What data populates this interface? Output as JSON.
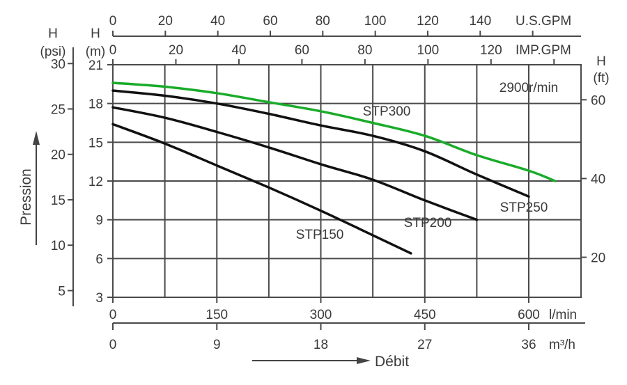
{
  "chart_data": {
    "type": "line",
    "title": "",
    "speed_label": "2900r/min",
    "xlabel": "Débit",
    "ylabel": "Pression",
    "x_unit": "l/min",
    "y_unit": "m",
    "xlim": [
      0,
      675
    ],
    "ylim": [
      3,
      21
    ],
    "grid": true,
    "legend_position": "inline labels",
    "axes": {
      "bottom_primary": {
        "unit": "l/min",
        "ticks": [
          0,
          150,
          300,
          450,
          600
        ]
      },
      "bottom_secondary": {
        "unit": "m³/h",
        "ticks": [
          0,
          9,
          18,
          27,
          36
        ]
      },
      "top_primary": {
        "unit": "U.S.GPM",
        "ticks": [
          0,
          20,
          40,
          60,
          80,
          100,
          120,
          140
        ]
      },
      "top_secondary": {
        "unit": "IMP.GPM",
        "ticks": [
          0,
          20,
          40,
          60,
          80,
          100,
          120
        ]
      },
      "left_primary": {
        "label": "H",
        "unit": "(m)",
        "ticks": [
          3,
          6,
          9,
          12,
          15,
          18,
          21
        ]
      },
      "left_secondary": {
        "label": "H",
        "unit": "(psi)",
        "ticks": [
          5,
          10,
          15,
          20,
          25,
          30
        ]
      },
      "right": {
        "label": "H",
        "unit": "(ft)",
        "ticks": [
          20,
          40,
          60
        ]
      }
    },
    "series": [
      {
        "name": "STP300",
        "color": "#1aab2a",
        "x": [
          0,
          75,
          150,
          225,
          300,
          375,
          450,
          525,
          600,
          638
        ],
        "y": [
          19.6,
          19.3,
          18.8,
          18.1,
          17.4,
          16.5,
          15.5,
          14.0,
          12.8,
          12.0
        ]
      },
      {
        "name": "STP250",
        "color": "#111111",
        "x": [
          0,
          75,
          150,
          225,
          300,
          375,
          450,
          525,
          600
        ],
        "y": [
          19.0,
          18.6,
          18.0,
          17.2,
          16.3,
          15.5,
          14.3,
          12.5,
          10.8
        ]
      },
      {
        "name": "STP200",
        "color": "#111111",
        "x": [
          0,
          75,
          150,
          225,
          300,
          375,
          450,
          525
        ],
        "y": [
          17.7,
          16.9,
          15.8,
          14.6,
          13.3,
          12.1,
          10.5,
          9.0
        ]
      },
      {
        "name": "STP150",
        "color": "#111111",
        "x": [
          0,
          75,
          150,
          225,
          300,
          375,
          430
        ],
        "y": [
          16.4,
          14.9,
          13.2,
          11.5,
          9.7,
          7.8,
          6.4
        ]
      }
    ]
  },
  "labels": {
    "us_gpm": "U.S.GPM",
    "imp_gpm": "IMP.GPM",
    "h_psi_h": "H",
    "h_psi_unit": "(psi)",
    "h_m_h": "H",
    "h_m_unit": "(m)",
    "h_ft_h": "H",
    "h_ft_unit": "(ft)",
    "lmin": "l/min",
    "m3h": "m³/h",
    "debit": "Débit",
    "pression": "Pression",
    "speed": "2900r/min",
    "stp300": "STP300",
    "stp250": "STP250",
    "stp200": "STP200",
    "stp150": "STP150"
  }
}
